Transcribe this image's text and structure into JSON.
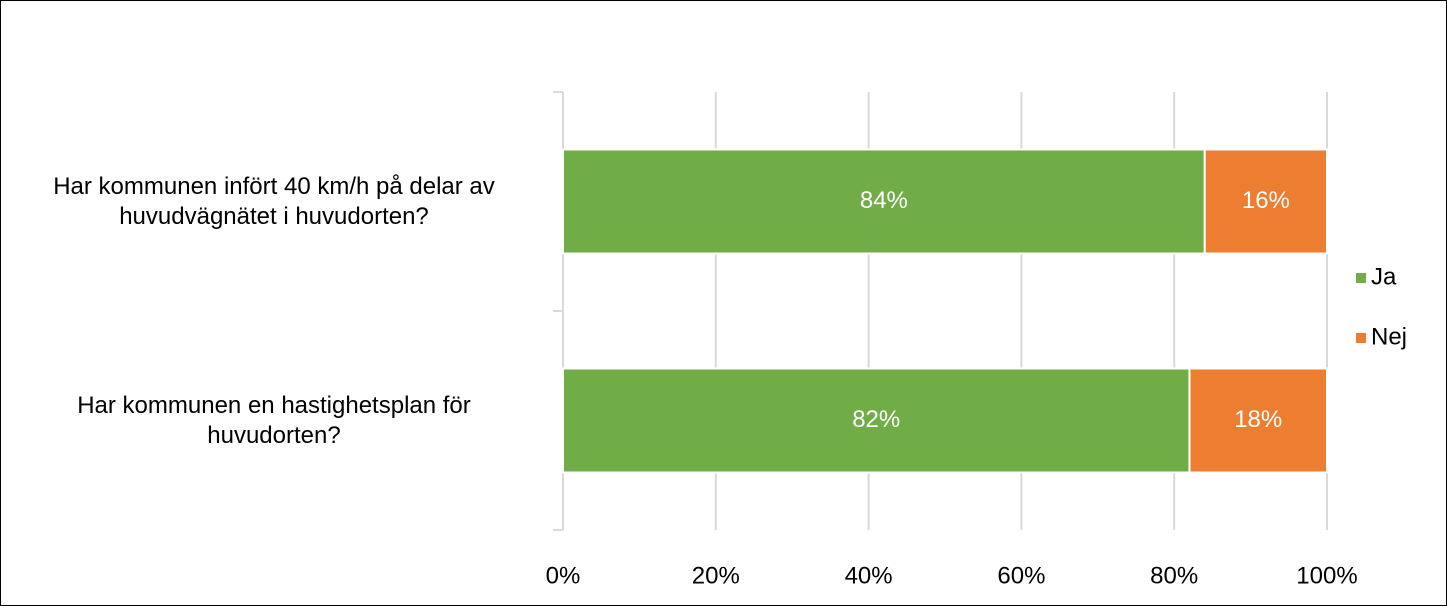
{
  "chart_data": {
    "type": "stacked_barh",
    "categories": [
      "Har kommunen infört 40 km/h på delar av huvudvägnätet i huvudorten?",
      "Har kommunen en hastighetsplan för huvudorten?"
    ],
    "series": [
      {
        "name": "Ja",
        "color": "#70ad47",
        "values": [
          84,
          82
        ],
        "value_labels": [
          "84%",
          "82%"
        ]
      },
      {
        "name": "Nej",
        "color": "#ed7d31",
        "values": [
          16,
          18
        ],
        "value_labels": [
          "16%",
          "18%"
        ]
      }
    ],
    "xlim": [
      0,
      100
    ],
    "xticks": [
      {
        "value": 0,
        "label": "0%"
      },
      {
        "value": 20,
        "label": "20%"
      },
      {
        "value": 40,
        "label": "40%"
      },
      {
        "value": 60,
        "label": "60%"
      },
      {
        "value": 80,
        "label": "80%"
      },
      {
        "value": 100,
        "label": "100%"
      }
    ],
    "grid": true,
    "legend": "right"
  }
}
